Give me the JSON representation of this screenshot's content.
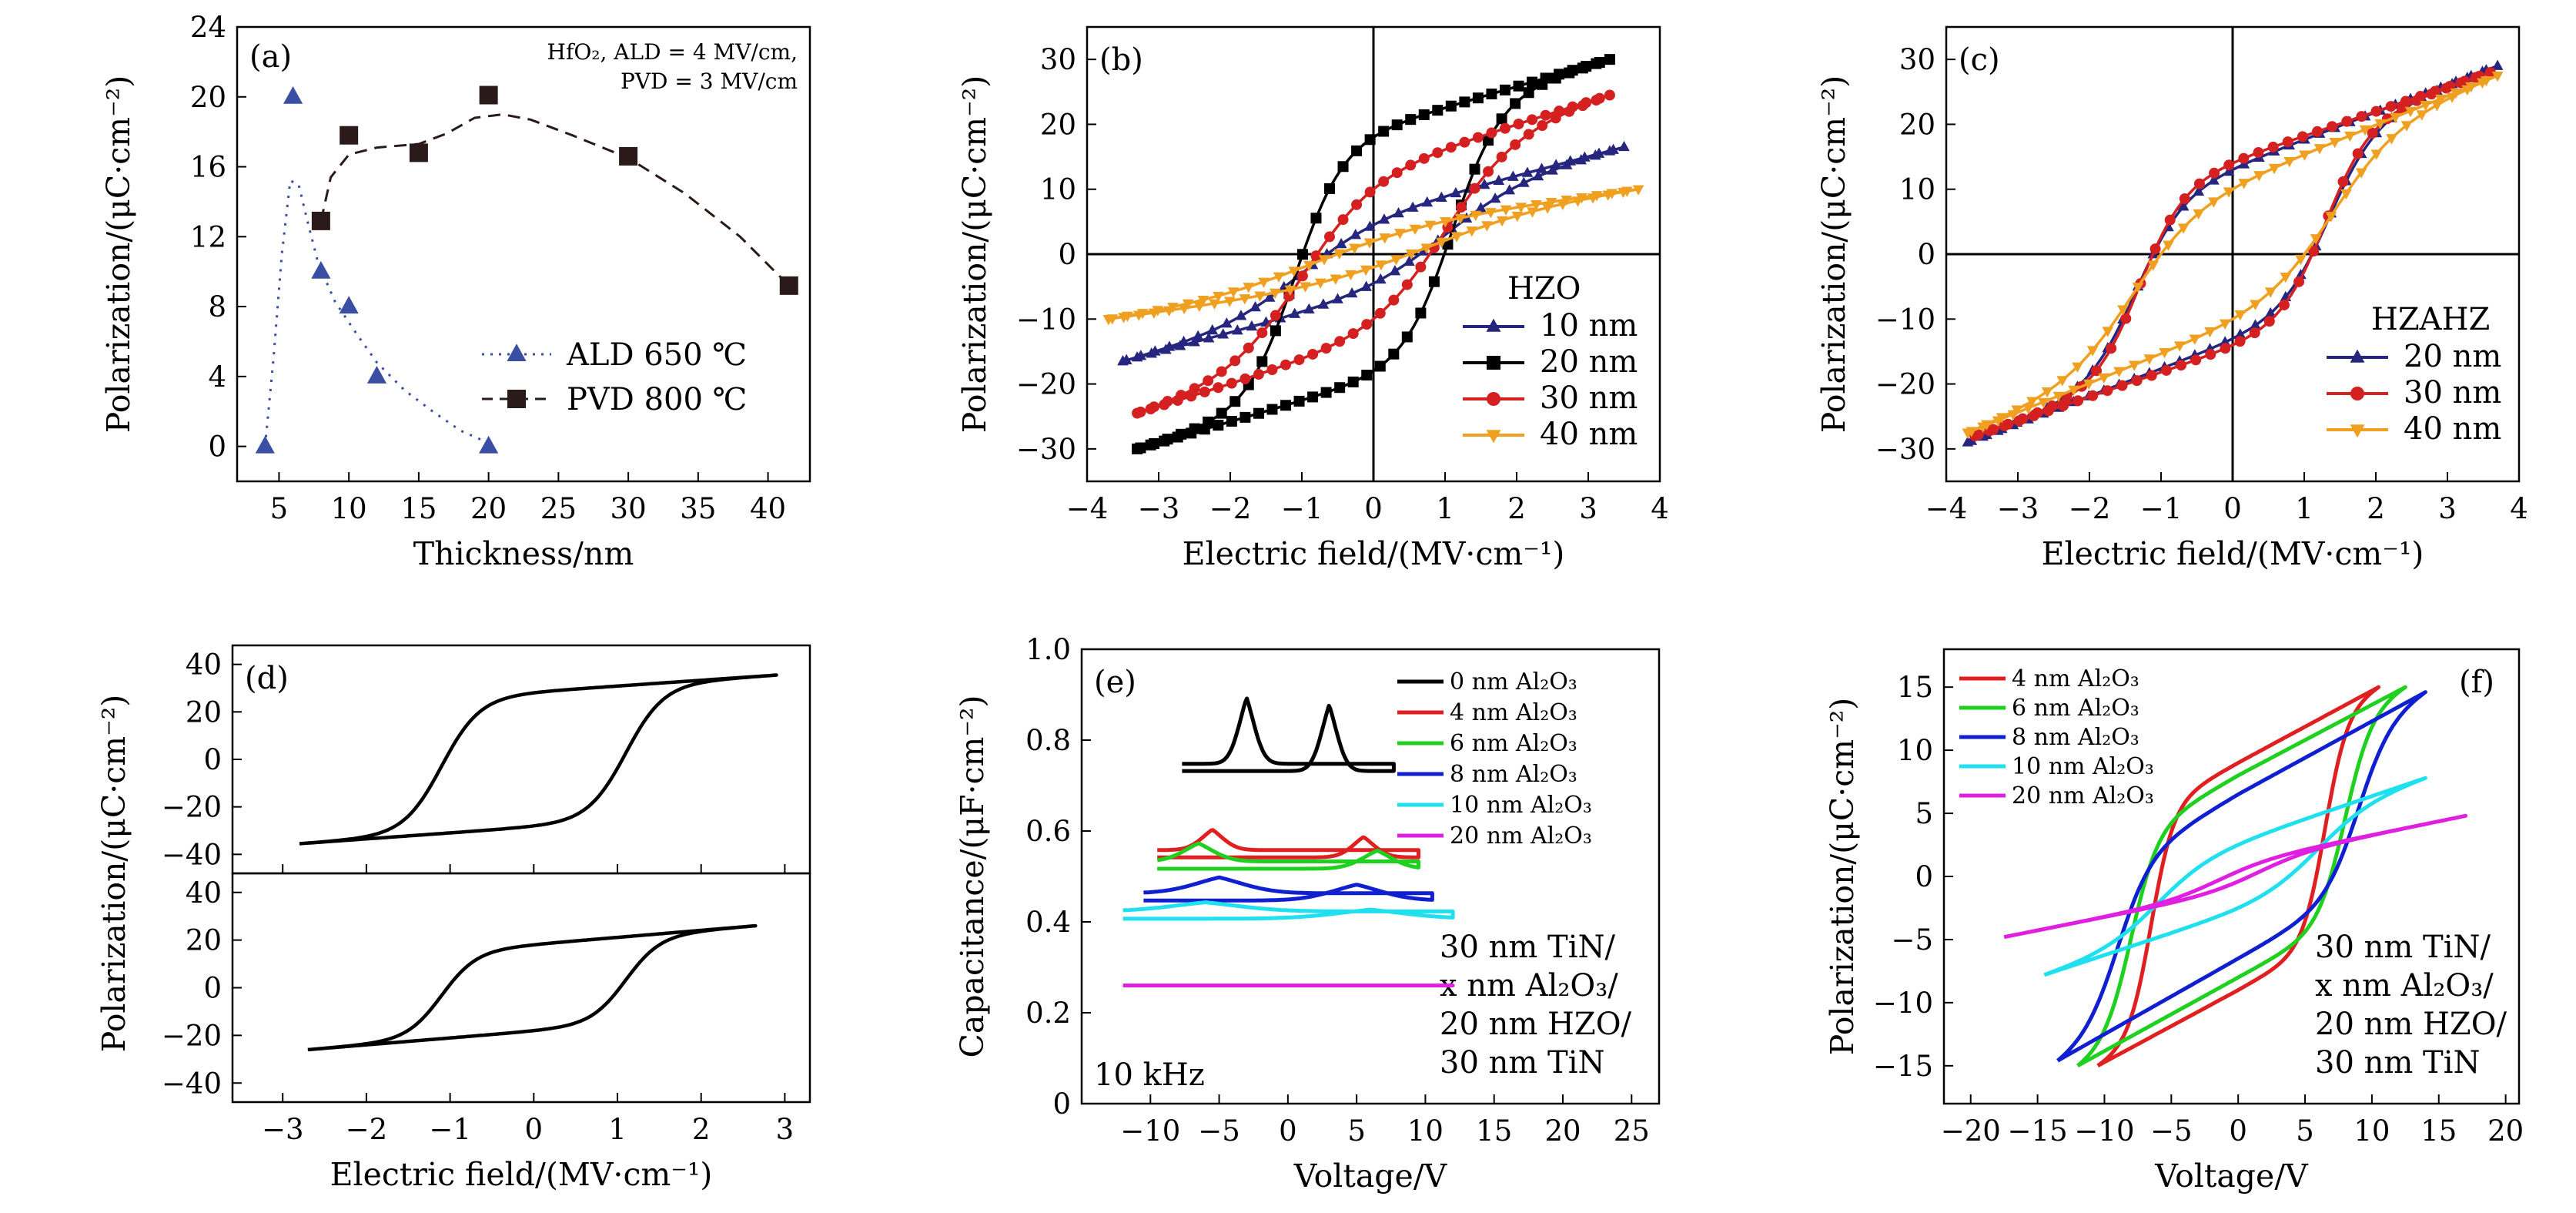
{
  "chart_data": [
    {
      "id": "a",
      "type": "scatter",
      "panel_label": "(a)",
      "xlabel": "Thickness/nm",
      "ylabel": "Polarization/(μC·cm⁻²)",
      "xlim": [
        2,
        43
      ],
      "ylim": [
        -2,
        24
      ],
      "xticks": [
        5,
        10,
        15,
        20,
        25,
        30,
        35,
        40
      ],
      "yticks": [
        0,
        4,
        8,
        12,
        16,
        20,
        24
      ],
      "annotation": [
        "HfO₂, ALD = 4 MV/cm,",
        "PVD = 3 MV/cm"
      ],
      "legend_position": "lower-center",
      "series": [
        {
          "name": "ALD 650 ℃",
          "marker": "triangle",
          "color": "#3a4fa3",
          "line": "dotted",
          "points": [
            [
              4,
              0
            ],
            [
              6,
              20
            ],
            [
              8,
              10
            ],
            [
              10,
              8
            ],
            [
              12,
              4
            ],
            [
              20,
              0
            ]
          ],
          "fit": [
            [
              4,
              0
            ],
            [
              4.6,
              5
            ],
            [
              5.2,
              11
            ],
            [
              5.8,
              15.2
            ],
            [
              6.4,
              15
            ],
            [
              7,
              13
            ],
            [
              7.8,
              10.5
            ],
            [
              9,
              8.3
            ],
            [
              10.5,
              6.5
            ],
            [
              12,
              4.8
            ],
            [
              14,
              3.2
            ],
            [
              16,
              2
            ],
            [
              18,
              0.9
            ],
            [
              20,
              0.2
            ]
          ]
        },
        {
          "name": "PVD 800 ℃",
          "marker": "square",
          "color": "#2b1a1a",
          "line": "dashed",
          "points": [
            [
              8,
              12.9
            ],
            [
              10,
              17.8
            ],
            [
              15,
              16.8
            ],
            [
              20,
              20.1
            ],
            [
              30,
              16.6
            ],
            [
              41.5,
              9.2
            ]
          ],
          "fit": [
            [
              8,
              12.9
            ],
            [
              8.7,
              15.4
            ],
            [
              10,
              16.7
            ],
            [
              12,
              17.1
            ],
            [
              15,
              17.3
            ],
            [
              17,
              17.9
            ],
            [
              19,
              18.8
            ],
            [
              21,
              19
            ],
            [
              23,
              18.7
            ],
            [
              26,
              17.8
            ],
            [
              30,
              16.5
            ],
            [
              34,
              14.5
            ],
            [
              38,
              12
            ],
            [
              41.5,
              9.2
            ]
          ]
        }
      ]
    },
    {
      "id": "b",
      "type": "line",
      "panel_label": "(b)",
      "xlabel": "Electric field/(MV·cm⁻¹)",
      "ylabel": "Polarization/(μC·cm⁻²)",
      "xlim": [
        -4,
        4
      ],
      "ylim": [
        -35,
        35
      ],
      "xticks": [
        -4,
        -3,
        -2,
        -1,
        0,
        1,
        2,
        3,
        4
      ],
      "yticks": [
        -30,
        -20,
        -10,
        0,
        10,
        20,
        30
      ],
      "legend_title": "HZO",
      "legend_position": "lower-right",
      "series": [
        {
          "name": "10 nm",
          "color": "#26267e",
          "marker": "triangle",
          "Emax": 3.5,
          "Pmax": 16.5,
          "Ec": 1.0,
          "Pr": 4.5,
          "k": 0.9
        },
        {
          "name": "20 nm",
          "color": "#000000",
          "marker": "square",
          "Emax": 3.3,
          "Pmax": 30,
          "Ec": 1.1,
          "Pr": 18,
          "k": 1.5
        },
        {
          "name": "30 nm",
          "color": "#d42020",
          "marker": "circle",
          "Emax": 3.3,
          "Pmax": 24.5,
          "Ec": 1.0,
          "Pr": 10,
          "k": 1.0
        },
        {
          "name": "40 nm",
          "color": "#f0a020",
          "marker": "triangle-down",
          "Emax": 3.7,
          "Pmax": 10,
          "Ec": 0.8,
          "Pr": 2,
          "k": 0.6
        }
      ]
    },
    {
      "id": "c",
      "type": "line",
      "panel_label": "(c)",
      "xlabel": "Electric field/(MV·cm⁻¹)",
      "ylabel": "Polarization/(μC·cm⁻²)",
      "xlim": [
        -4,
        4
      ],
      "ylim": [
        -35,
        35
      ],
      "xticks": [
        -4,
        -3,
        -2,
        -1,
        0,
        1,
        2,
        3,
        4
      ],
      "yticks": [
        -30,
        -20,
        -10,
        0,
        10,
        20,
        30
      ],
      "legend_title": "HZAHZ",
      "legend_position": "lower-right",
      "series": [
        {
          "name": "20 nm",
          "color": "#26267e",
          "marker": "triangle",
          "Emax": 3.7,
          "Pmax": 29,
          "Ec": 1.35,
          "Pr": 13,
          "k": 1.5
        },
        {
          "name": "30 nm",
          "color": "#d42020",
          "marker": "circle",
          "Emax": 3.6,
          "Pmax": 28,
          "Ec": 1.3,
          "Pr": 14,
          "k": 1.6
        },
        {
          "name": "40 nm",
          "color": "#f0a020",
          "marker": "triangle-down",
          "Emax": 3.7,
          "Pmax": 27.5,
          "Ec": 1.4,
          "Pr": 10,
          "k": 1.1
        }
      ]
    },
    {
      "id": "d",
      "type": "line",
      "panel_label": "(d)",
      "xlabel": "Electric field/(MV·cm⁻¹)",
      "ylabel": "Polarization/(μC·cm⁻²)",
      "xlim": [
        -3.6,
        3.3
      ],
      "xticks": [
        -3,
        -2,
        -1,
        0,
        1,
        2,
        3
      ],
      "subplots": [
        {
          "ylim": [
            -48,
            48
          ],
          "yticks": [
            -40,
            -20,
            0,
            20,
            40
          ],
          "Emin": -2.8,
          "Emax": 2.9,
          "Pmax": 35.5,
          "Ec": 1.1,
          "Pr": 28,
          "k": 2.2
        },
        {
          "ylim": [
            -48,
            48
          ],
          "yticks": [
            -40,
            -20,
            0,
            20,
            40
          ],
          "Emin": -2.7,
          "Emax": 2.65,
          "Pmax": 26,
          "Ec": 1.1,
          "Pr": 18,
          "k": 2.4
        }
      ]
    },
    {
      "id": "e",
      "type": "line",
      "panel_label": "(e)",
      "xlabel": "Voltage/V",
      "ylabel": "Capacitance/(μF·cm⁻²)",
      "xlim": [
        -15,
        27
      ],
      "ylim": [
        0,
        1.0
      ],
      "xticks": [
        -10,
        -5,
        0,
        5,
        10,
        15,
        20,
        25
      ],
      "yticks": [
        0,
        0.2,
        0.4,
        0.6,
        0.8,
        1.0
      ],
      "annotation_lower_left": "10 kHz",
      "annotation_lower_right": [
        "30 nm TiN/",
        "x nm Al₂O₃/",
        "20 nm HZO/",
        "30 nm TiN"
      ],
      "legend_position": "top-right",
      "series": [
        {
          "name": "0 nm Al₂O₃",
          "color": "#000000",
          "base": 0.74,
          "peak": 0.145,
          "Vp": 3,
          "width": 1.6,
          "vmax": 7.7
        },
        {
          "name": "4 nm Al₂O₃",
          "color": "#e02020",
          "base": 0.55,
          "peak": 0.045,
          "Vp": 5.5,
          "width": 2.2,
          "vmax": 9.5
        },
        {
          "name": "6 nm Al₂O₃",
          "color": "#20d020",
          "base": 0.525,
          "peak": 0.04,
          "Vp": 6.5,
          "width": 3,
          "vmax": 9.5
        },
        {
          "name": "8 nm Al₂O₃",
          "color": "#1020d0",
          "base": 0.455,
          "peak": 0.035,
          "Vp": 5,
          "width": 5,
          "vmax": 10.5
        },
        {
          "name": "10 nm Al₂O₃",
          "color": "#20e0f0",
          "base": 0.415,
          "peak": 0.02,
          "Vp": 6,
          "width": 7,
          "vmax": 12
        },
        {
          "name": "20 nm Al₂O₃",
          "color": "#e020e0",
          "base": 0.26,
          "peak": 0.0,
          "Vp": 0,
          "width": 1,
          "vmax": 12
        }
      ]
    },
    {
      "id": "f",
      "type": "line",
      "panel_label": "(f)",
      "xlabel": "Voltage/V",
      "ylabel": "Polarization/(μC·cm⁻²)",
      "xlim": [
        -22,
        21
      ],
      "ylim": [
        -18,
        18
      ],
      "xticks": [
        -20,
        -15,
        -10,
        -5,
        0,
        5,
        10,
        15,
        20
      ],
      "yticks": [
        -15,
        -10,
        -5,
        0,
        5,
        10,
        15
      ],
      "annotation_lower_right": [
        "30 nm TiN/",
        "x nm Al₂O₃/",
        "20 nm HZO/",
        "30 nm TiN"
      ],
      "legend_position": "top-left",
      "series": [
        {
          "name": "4 nm Al₂O₃",
          "color": "#e02020",
          "Vmax": 10.5,
          "Vmin": -10.5,
          "Pmax": 15,
          "Vc": 6.5,
          "Pr": 9,
          "k": 0.6
        },
        {
          "name": "6 nm Al₂O₃",
          "color": "#20d020",
          "Vmax": 12.5,
          "Vmin": -12,
          "Pmax": 15,
          "Vc": 8,
          "Pr": 8,
          "k": 0.5
        },
        {
          "name": "8 nm Al₂O₃",
          "color": "#1020d0",
          "Vmax": 14,
          "Vmin": -13.5,
          "Pmax": 14.6,
          "Vc": 9,
          "Pr": 6.5,
          "k": 0.4
        },
        {
          "name": "10 nm Al₂O₃",
          "color": "#20e0f0",
          "Vmax": 14,
          "Vmin": -14.5,
          "Pmax": 7.8,
          "Vc": 6,
          "Pr": 2.5,
          "k": 0.25
        },
        {
          "name": "20 nm Al₂O₃",
          "color": "#e020e0",
          "Vmax": 17,
          "Vmin": -17.5,
          "Pmax": 4.8,
          "Vc": 1.5,
          "Pr": 0.4,
          "k": 0.25
        }
      ]
    }
  ]
}
